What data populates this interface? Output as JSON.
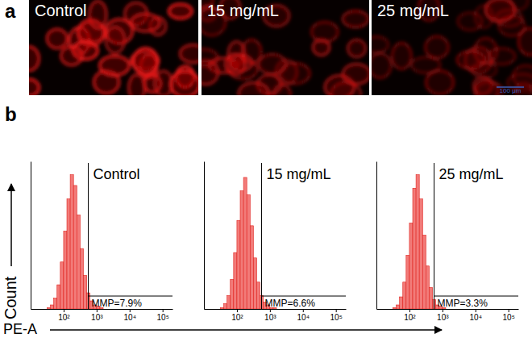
{
  "figure": {
    "panel_labels": [
      "a",
      "b"
    ],
    "images": [
      {
        "label": "Control"
      },
      {
        "label": "15 mg/mL"
      },
      {
        "label": "25 mg/mL"
      }
    ],
    "scale_bar": "100 μm",
    "y_label": "Count",
    "x_label": "PE-A"
  },
  "chart_data": [
    {
      "type": "histogram",
      "title": "Control",
      "annotation": "MMP=7.9%",
      "color": "#f27b79",
      "log": "x",
      "tick_labels": "x",
      "gate": 560,
      "bins": [
        31.6,
        39.8,
        50.1,
        63.1,
        79.4,
        100,
        125.9,
        158.5,
        199.5,
        251.2,
        316.2,
        398.1,
        501.2,
        631,
        794.3,
        1000,
        1258.9,
        1584.9,
        1995.3
      ],
      "counts": [
        1,
        3,
        8,
        18,
        35,
        58,
        82,
        100,
        92,
        70,
        45,
        25,
        12,
        6,
        3,
        2,
        1,
        0
      ],
      "xlim": [
        10,
        200000
      ],
      "ylim": [
        0,
        110
      ],
      "xticks": [
        {
          "value": 100,
          "label": "10²"
        },
        {
          "value": 1000,
          "label": "10³"
        },
        {
          "value": 10000,
          "label": "10⁴"
        },
        {
          "value": 100000,
          "label": "10⁵"
        }
      ]
    },
    {
      "type": "histogram",
      "title": "15 mg/mL",
      "annotation": "MMP=6.6%",
      "color": "#f27b79",
      "log": "x",
      "tick_labels": "x",
      "gate": 560,
      "bins": [
        31.6,
        39.8,
        50.1,
        63.1,
        79.4,
        100,
        125.9,
        158.5,
        199.5,
        251.2,
        316.2,
        398.1,
        501.2,
        631,
        794.3,
        1000,
        1258.9,
        1584.9,
        1995.3
      ],
      "counts": [
        1,
        4,
        10,
        22,
        42,
        66,
        88,
        98,
        85,
        62,
        38,
        20,
        10,
        5,
        3,
        1,
        1,
        0
      ],
      "xlim": [
        10,
        200000
      ],
      "ylim": [
        0,
        110
      ],
      "xticks": [
        {
          "value": 100,
          "label": "10²"
        },
        {
          "value": 1000,
          "label": "10³"
        },
        {
          "value": 10000,
          "label": "10⁴"
        },
        {
          "value": 100000,
          "label": "10⁵"
        }
      ]
    },
    {
      "type": "histogram",
      "title": "25 mg/mL",
      "annotation": "MMP=3.3%",
      "color": "#f27b79",
      "log": "x",
      "tick_labels": "x",
      "gate": 560,
      "bins": [
        31.6,
        39.8,
        50.1,
        63.1,
        79.4,
        100,
        125.9,
        158.5,
        199.5,
        251.2,
        316.2,
        398.1,
        501.2,
        631,
        794.3,
        1000,
        1258.9,
        1584.9,
        1995.3
      ],
      "counts": [
        1,
        3,
        9,
        20,
        40,
        64,
        90,
        100,
        82,
        55,
        32,
        16,
        7,
        3,
        2,
        1,
        0,
        0
      ],
      "xlim": [
        10,
        200000
      ],
      "ylim": [
        0,
        110
      ],
      "xticks": [
        {
          "value": 100,
          "label": "10²"
        },
        {
          "value": 1000,
          "label": "10³"
        },
        {
          "value": 10000,
          "label": "10⁴"
        },
        {
          "value": 100000,
          "label": "10⁵"
        }
      ]
    }
  ]
}
